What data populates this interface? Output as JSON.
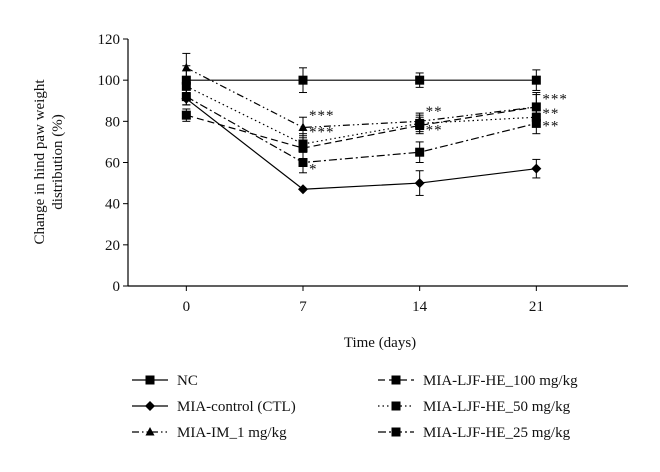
{
  "chart_data": {
    "type": "line",
    "title": "",
    "xlabel": "Time (days)",
    "ylabel_lines": [
      "Change in hind paw weight",
      "distribution (%)"
    ],
    "categories": [
      "0",
      "7",
      "14",
      "21"
    ],
    "x": [
      0,
      7,
      14,
      21
    ],
    "xlim": [
      -3.5,
      26.5
    ],
    "ylim": [
      0,
      120
    ],
    "yticks": [
      "0",
      "20",
      "40",
      "60",
      "80",
      "100",
      "120"
    ],
    "grid": false,
    "legend_position": "bottom",
    "series": [
      {
        "name": "NC",
        "values": [
          100,
          100,
          100,
          100
        ],
        "errors": [
          7,
          6,
          3.5,
          5
        ],
        "marker": "square",
        "dash": "solid",
        "color": "#000000"
      },
      {
        "name": "MIA-control (CTL)",
        "values": [
          91,
          47,
          50,
          57
        ],
        "errors": [
          3,
          0,
          6,
          4.5
        ],
        "marker": "diamond",
        "dash": "solid",
        "color": "#000000"
      },
      {
        "name": "MIA-IM_1 mg/kg",
        "values": [
          106,
          77,
          80,
          87
        ],
        "errors": [
          7,
          5,
          4,
          6
        ],
        "marker": "triangle",
        "dash": "dashdotdot",
        "color": "#000000"
      },
      {
        "name": "MIA-LJF-HE_100 mg/kg",
        "values": [
          83,
          67,
          78,
          87
        ],
        "errors": [
          3,
          7,
          4,
          7
        ],
        "marker": "square",
        "dash": "dashed",
        "color": "#000000"
      },
      {
        "name": "MIA-LJF-HE_50 mg/kg",
        "values": [
          97,
          69,
          79,
          82
        ],
        "errors": [
          3,
          4,
          4,
          4
        ],
        "marker": "square",
        "dash": "dotted",
        "color": "#000000"
      },
      {
        "name": "MIA-LJF-HE_25 mg/kg",
        "values": [
          92,
          60,
          65,
          79
        ],
        "errors": [
          4,
          5,
          5,
          5
        ],
        "marker": "square",
        "dash": "dashdot",
        "color": "#000000"
      }
    ],
    "annotations": [
      {
        "text": "***",
        "x": 7,
        "y": 83
      },
      {
        "text": "***",
        "x": 7,
        "y": 75
      },
      {
        "text": "*",
        "x": 7,
        "y": 57
      },
      {
        "text": "**",
        "x": 14,
        "y": 85
      },
      {
        "text": "**",
        "x": 14,
        "y": 76
      },
      {
        "text": "***",
        "x": 21,
        "y": 91
      },
      {
        "text": "**",
        "x": 21,
        "y": 84
      },
      {
        "text": "**",
        "x": 21,
        "y": 78
      }
    ]
  }
}
